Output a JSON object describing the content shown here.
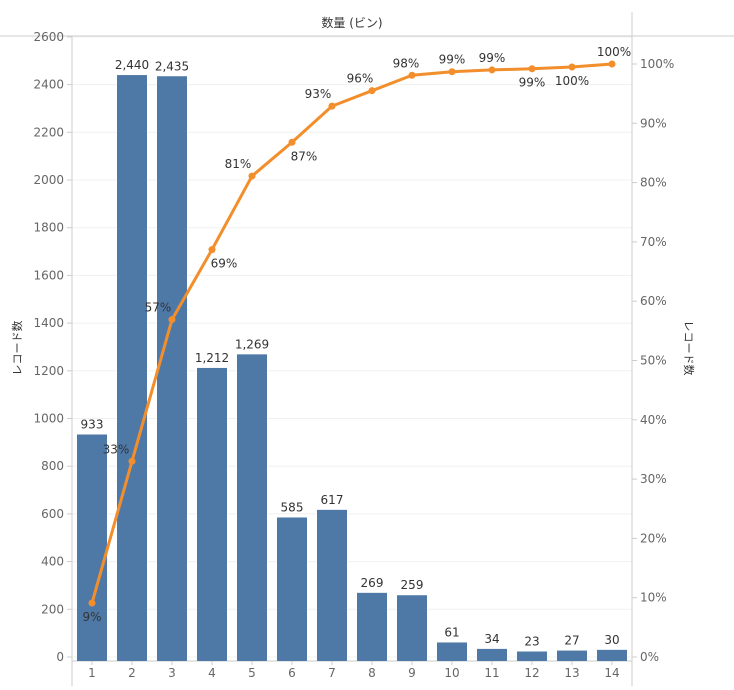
{
  "chart_data": {
    "type": "bar+line",
    "title": "数量 (ビン)",
    "xlabel": "数量 (ビン)",
    "ylabel_left": "レコード数",
    "ylabel_right": "レコード数",
    "categories": [
      "1",
      "2",
      "3",
      "4",
      "5",
      "6",
      "7",
      "8",
      "9",
      "10",
      "11",
      "12",
      "13",
      "14"
    ],
    "series": [
      {
        "kind": "bar",
        "axis": "left",
        "values": [
          933,
          2440,
          2435,
          1212,
          1269,
          585,
          617,
          269,
          259,
          61,
          34,
          23,
          27,
          30
        ],
        "labels": [
          "933",
          "2,440",
          "2,435",
          "1,212",
          "1,269",
          "585",
          "617",
          "269",
          "259",
          "61",
          "34",
          "23",
          "27",
          "30"
        ],
        "color": "#4e79a7"
      },
      {
        "kind": "line",
        "axis": "right",
        "values": [
          9.1,
          33.0,
          56.9,
          68.7,
          81.1,
          86.8,
          92.9,
          95.5,
          98.1,
          98.7,
          99.0,
          99.2,
          99.5,
          100.0
        ],
        "labels": [
          "9%",
          "33%",
          "57%",
          "69%",
          "81%",
          "87%",
          "93%",
          "96%",
          "98%",
          "99%",
          "99%",
          "99%",
          "100%",
          "100%"
        ],
        "color": "#f28e2b"
      }
    ],
    "ylim_left": [
      0,
      2600
    ],
    "yticks_left": [
      "0",
      "200",
      "400",
      "600",
      "800",
      "1000",
      "1200",
      "1400",
      "1600",
      "1800",
      "2000",
      "2200",
      "2400",
      "2600"
    ],
    "ylim_right": [
      0,
      100
    ],
    "yticks_right": [
      "0%",
      "10%",
      "20%",
      "30%",
      "40%",
      "50%",
      "60%",
      "70%",
      "80%",
      "90%",
      "100%"
    ],
    "grid": true,
    "legend": "none",
    "colors": {
      "bar": "#4e79a7",
      "line": "#f28e2b",
      "axis": "#cccccc",
      "text": "#333333",
      "tick": "#666666"
    }
  }
}
